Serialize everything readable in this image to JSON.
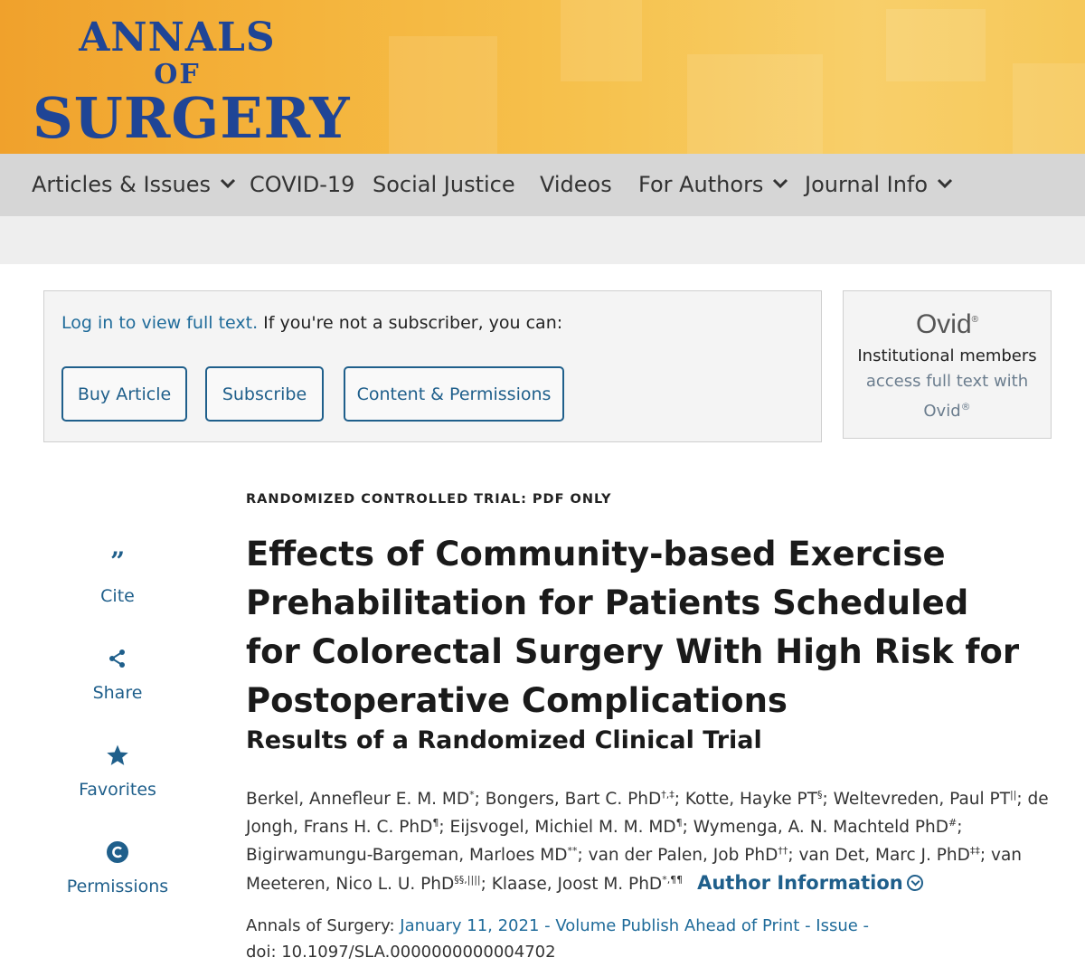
{
  "journal": {
    "line1": "ANNALS",
    "line2": "OF",
    "line3": "SURGERY"
  },
  "nav": {
    "items": [
      {
        "label": "Articles & Issues",
        "dropdown": true
      },
      {
        "label": "COVID-19",
        "dropdown": false
      },
      {
        "label": "Social Justice",
        "dropdown": false
      },
      {
        "label": "Videos",
        "dropdown": false
      },
      {
        "label": "For Authors",
        "dropdown": true
      },
      {
        "label": "Journal Info",
        "dropdown": true
      }
    ]
  },
  "access": {
    "login_link": "Log in to view full text.",
    "prompt": " If you're not a subscriber, you can:",
    "buttons": [
      "Buy Article",
      "Subscribe",
      "Content & Permissions"
    ]
  },
  "ovid": {
    "logo": "Ovid",
    "text_plain": "Institutional members ",
    "text_link": "access full text with Ovid",
    "reg": "®"
  },
  "tools": [
    {
      "label": "Cite",
      "icon": "quote-icon"
    },
    {
      "label": "Share",
      "icon": "share-icon"
    },
    {
      "label": "Favorites",
      "icon": "star-icon"
    },
    {
      "label": "Permissions",
      "icon": "copyright-icon"
    }
  ],
  "article": {
    "kicker": "RANDOMIZED CONTROLLED TRIAL: PDF ONLY",
    "title": "Effects of Community-based Exercise Prehabilitation for Patients Scheduled for Colorectal Surgery With High Risk for Postoperative Complications",
    "subtitle": "Results of a Randomized Clinical Trial",
    "authors": [
      {
        "name": "Berkel, Annefleur E. M. MD",
        "sup": "*"
      },
      {
        "name": "Bongers, Bart C. PhD",
        "sup": "†,‡"
      },
      {
        "name": "Kotte, Hayke PT",
        "sup": "§"
      },
      {
        "name": "Weltevreden, Paul PT",
        "sup": "||"
      },
      {
        "name": "de Jongh, Frans H. C. PhD",
        "sup": "¶"
      },
      {
        "name": "Eijsvogel, Michiel M. M. MD",
        "sup": "¶"
      },
      {
        "name": "Wymenga, A. N. Machteld PhD",
        "sup": "#"
      },
      {
        "name": "Bigirwamungu-Bargeman, Marloes MD",
        "sup": "**"
      },
      {
        "name": "van der Palen, Job PhD",
        "sup": "††"
      },
      {
        "name": "van Det, Marc J. PhD",
        "sup": "‡‡"
      },
      {
        "name": "van Meeteren, Nico L. U. PhD",
        "sup": "§§,||||"
      },
      {
        "name": "Klaase, Joost M. PhD",
        "sup": "*,¶¶"
      }
    ],
    "author_info_label": "Author Information",
    "journal_label": "Annals of Surgery:",
    "issue_link": "January 11, 2021 - Volume Publish Ahead of Print - Issue -",
    "doi": "doi: 10.1097/SLA.0000000000004702"
  },
  "colors": {
    "banner": "#f4b23a",
    "brand_blue": "#1f4596",
    "link": "#1f5f8b",
    "nav_bg": "#d6d6d6"
  }
}
